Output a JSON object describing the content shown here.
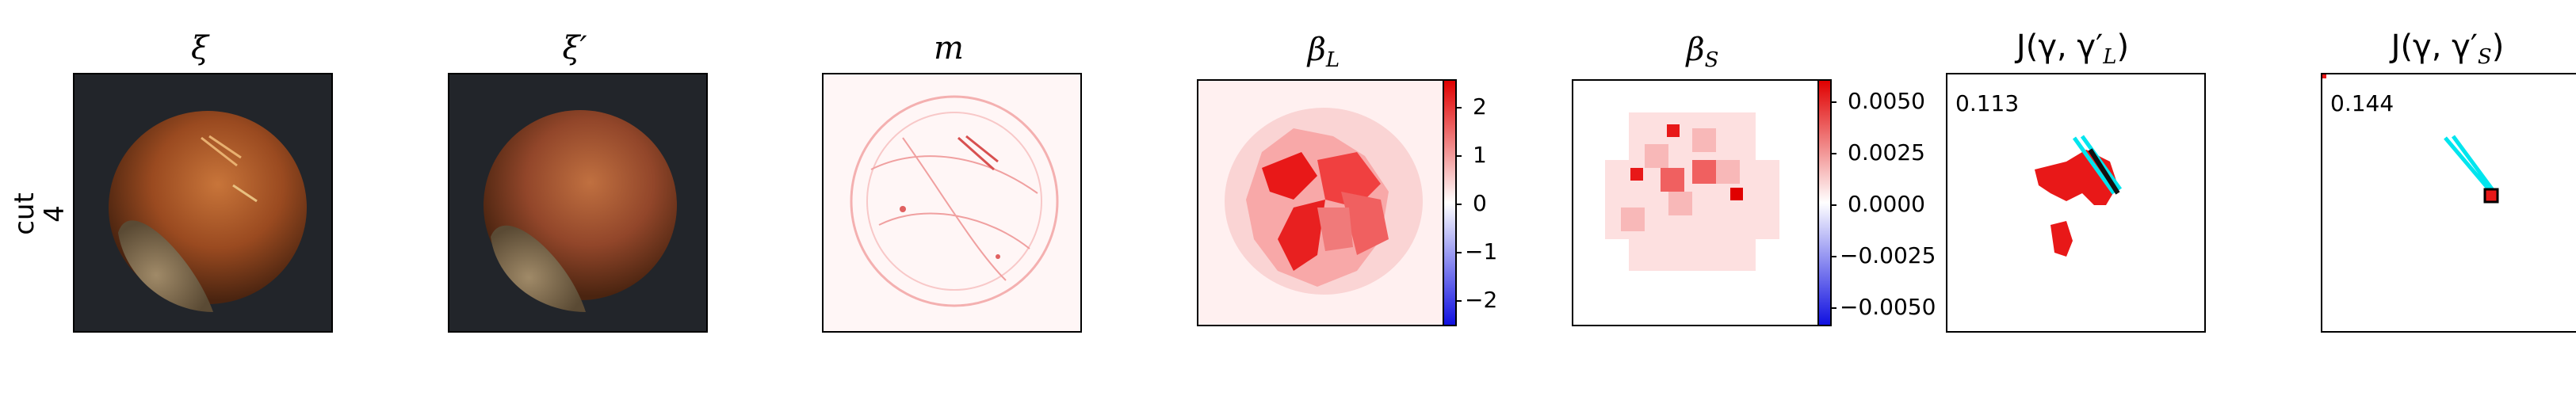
{
  "row_label": "cut\n4",
  "titles": {
    "xi": "ξ",
    "xi_prime": "ξ′",
    "m": "m",
    "beta_l_main": "β",
    "beta_l_sub": "L",
    "beta_s_main": "β",
    "beta_s_sub": "S",
    "j_l": "J(γ, γ′",
    "j_l_sub": "L",
    "j_l_end": ")",
    "j_s": "J(γ, γ′",
    "j_s_sub": "S",
    "j_s_end": ")"
  },
  "colorbar_l": {
    "ticks": [
      "2",
      "1",
      "0",
      "−1",
      "−2"
    ]
  },
  "colorbar_s": {
    "ticks": [
      "0.0050",
      "0.0025",
      "0.0000",
      "−0.0025",
      "−0.0050"
    ]
  },
  "jaccard": {
    "l_value": "0.113",
    "s_value": "0.144"
  },
  "colors": {
    "positive": "#e8000b",
    "negative": "#1010e0",
    "cyan": "#00e5ee",
    "dark_bg": "#23262b"
  }
}
